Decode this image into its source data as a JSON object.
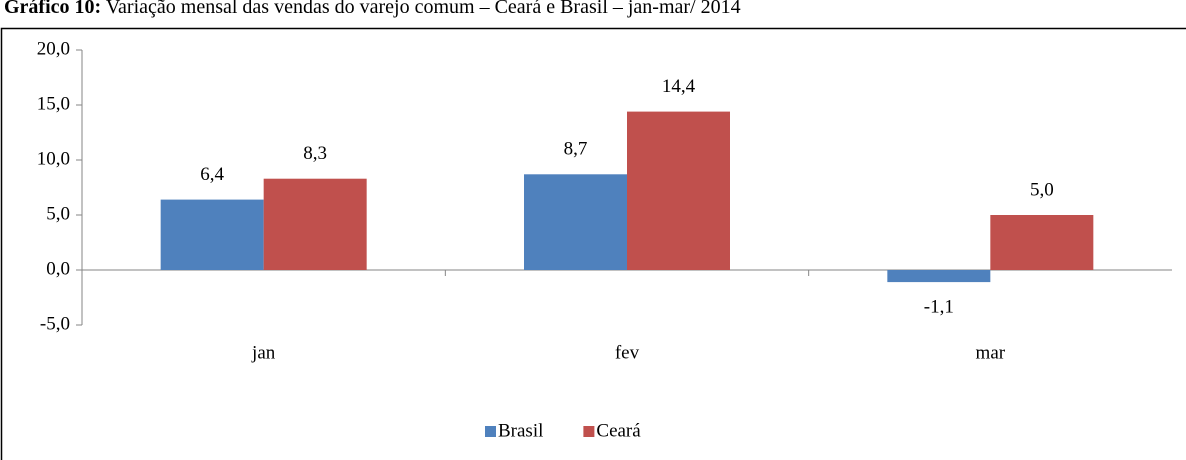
{
  "chart_data": {
    "type": "bar",
    "title_prefix": "Gráfico 10:",
    "title": "Variação mensal das vendas do varejo comum – Ceará e Brasil – jan-mar/ 2014",
    "categories": [
      "jan",
      "fev",
      "mar"
    ],
    "series": [
      {
        "name": "Brasil",
        "color": "#4f81bd",
        "values": [
          6.4,
          8.7,
          -1.1
        ],
        "value_labels": [
          "6,4",
          "8,7",
          "-1,1"
        ]
      },
      {
        "name": "Ceará",
        "color": "#c0504d",
        "values": [
          8.3,
          14.4,
          5.0
        ],
        "value_labels": [
          "8,3",
          "14,4",
          "5,0"
        ]
      }
    ],
    "ylim": [
      -5,
      20
    ],
    "yticks": [
      {
        "value": -5,
        "label": "-5,0"
      },
      {
        "value": 0,
        "label": "0,0"
      },
      {
        "value": 5,
        "label": "5,0"
      },
      {
        "value": 10,
        "label": "10,0"
      },
      {
        "value": 15,
        "label": "15,0"
      },
      {
        "value": 20,
        "label": "20,0"
      }
    ],
    "legend": "bottom"
  }
}
